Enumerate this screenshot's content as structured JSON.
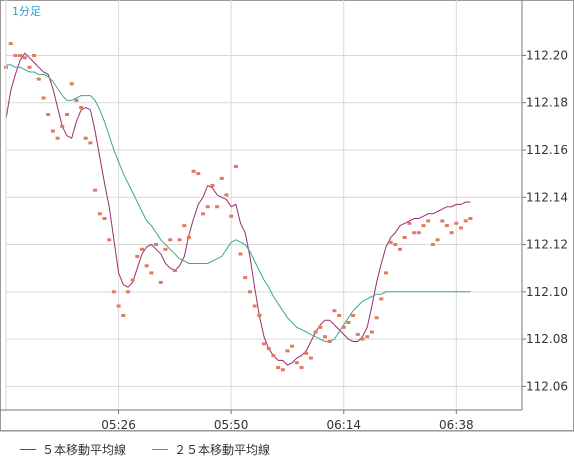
{
  "chart_data": {
    "type": "line",
    "title": "1分足",
    "colors": {
      "dots": "#e07b5f",
      "ma5": "#9b2d6b",
      "ma25": "#3aa890",
      "grid": "#d9d9d9",
      "axis": "#7a7a7a"
    },
    "xlim": [
      0,
      110
    ],
    "ylim": [
      112.05,
      112.215
    ],
    "xticks": [
      {
        "x": 24,
        "label": "05:26"
      },
      {
        "x": 48,
        "label": "05:50"
      },
      {
        "x": 72,
        "label": "06:14"
      },
      {
        "x": 96,
        "label": "06:38"
      }
    ],
    "yticks": [
      {
        "value": 112.06,
        "label": "112.06"
      },
      {
        "value": 112.08,
        "label": "112.08"
      },
      {
        "value": 112.1,
        "label": "112.10"
      },
      {
        "value": 112.12,
        "label": "112.12"
      },
      {
        "value": 112.14,
        "label": "112.14"
      },
      {
        "value": 112.16,
        "label": "112.16"
      },
      {
        "value": 112.18,
        "label": "112.18"
      },
      {
        "value": 112.2,
        "label": "112.20"
      }
    ],
    "series": [
      {
        "name": "５本移動平均線",
        "style": "line",
        "x": [
          0,
          1,
          2,
          3,
          4,
          5,
          6,
          7,
          8,
          9,
          10,
          11,
          12,
          13,
          14,
          15,
          16,
          17,
          18,
          19,
          20,
          21,
          22,
          23,
          24,
          25,
          26,
          27,
          28,
          29,
          30,
          31,
          32,
          33,
          34,
          35,
          36,
          37,
          38,
          39,
          40,
          41,
          42,
          43,
          44,
          45,
          46,
          47,
          48,
          49,
          50,
          51,
          52,
          53,
          54,
          55,
          56,
          57,
          58,
          59,
          60,
          61,
          62,
          63,
          64,
          65,
          66,
          67,
          68,
          69,
          70,
          71,
          72,
          73,
          74,
          75,
          76,
          77,
          78,
          79,
          80,
          81,
          82,
          83,
          84,
          85,
          86,
          87,
          88,
          89,
          90,
          91,
          92,
          93,
          94,
          95,
          96,
          97,
          98,
          99
        ],
        "values": [
          112.173,
          112.185,
          112.192,
          112.198,
          112.201,
          112.199,
          112.197,
          112.195,
          112.193,
          112.192,
          112.186,
          112.178,
          112.17,
          112.166,
          112.165,
          112.172,
          112.177,
          112.178,
          112.177,
          112.168,
          112.157,
          112.146,
          112.136,
          112.122,
          112.108,
          112.103,
          112.102,
          112.104,
          112.11,
          112.116,
          112.119,
          112.12,
          112.118,
          112.116,
          112.112,
          112.11,
          112.109,
          112.111,
          112.115,
          112.124,
          112.131,
          112.137,
          112.14,
          112.145,
          112.144,
          112.141,
          112.14,
          112.139,
          112.136,
          112.137,
          112.129,
          112.125,
          112.115,
          112.102,
          112.09,
          112.081,
          112.076,
          112.073,
          112.071,
          112.071,
          112.069,
          112.07,
          112.072,
          112.073,
          112.075,
          112.079,
          112.083,
          112.086,
          112.088,
          112.088,
          112.086,
          112.084,
          112.082,
          112.08,
          112.079,
          112.079,
          112.081,
          112.085,
          112.094,
          112.104,
          112.112,
          112.119,
          112.123,
          112.125,
          112.128,
          112.129,
          112.13,
          112.131,
          112.131,
          112.132,
          112.133,
          112.133,
          112.134,
          112.135,
          112.136,
          112.136,
          112.137,
          112.137,
          112.138,
          112.138
        ]
      },
      {
        "name": "２５本移動平均線",
        "style": "line",
        "x": [
          0,
          1,
          2,
          3,
          4,
          5,
          6,
          7,
          8,
          9,
          10,
          11,
          12,
          13,
          14,
          15,
          16,
          17,
          18,
          19,
          20,
          21,
          22,
          23,
          24,
          25,
          26,
          27,
          28,
          29,
          30,
          31,
          32,
          33,
          34,
          35,
          36,
          37,
          38,
          39,
          40,
          41,
          42,
          43,
          44,
          45,
          46,
          47,
          48,
          49,
          50,
          51,
          52,
          53,
          54,
          55,
          56,
          57,
          58,
          59,
          60,
          61,
          62,
          63,
          64,
          65,
          66,
          67,
          68,
          69,
          70,
          71,
          72,
          73,
          74,
          75,
          76,
          77,
          78,
          79,
          80,
          81,
          82,
          83,
          84,
          85,
          86,
          87,
          88,
          89,
          90,
          91,
          92,
          93,
          94,
          95,
          96,
          97,
          98,
          99
        ],
        "values": [
          112.196,
          112.196,
          112.195,
          112.195,
          112.194,
          112.193,
          112.193,
          112.192,
          112.192,
          112.191,
          112.189,
          112.186,
          112.183,
          112.181,
          112.181,
          112.182,
          112.183,
          112.183,
          112.183,
          112.181,
          112.177,
          112.172,
          112.166,
          112.16,
          112.155,
          112.15,
          112.146,
          112.142,
          112.138,
          112.134,
          112.13,
          112.128,
          112.125,
          112.122,
          112.12,
          112.118,
          112.116,
          112.114,
          112.113,
          112.112,
          112.112,
          112.112,
          112.112,
          112.112,
          112.113,
          112.114,
          112.115,
          112.118,
          112.121,
          112.122,
          112.121,
          112.12,
          112.117,
          112.113,
          112.109,
          112.105,
          112.102,
          112.098,
          112.095,
          112.092,
          112.089,
          112.087,
          112.085,
          112.084,
          112.083,
          112.082,
          112.081,
          112.08,
          112.079,
          112.079,
          112.08,
          112.083,
          112.086,
          112.089,
          112.092,
          112.094,
          112.096,
          112.097,
          112.098,
          112.099,
          112.099,
          112.1,
          112.1,
          112.1,
          112.1,
          112.1,
          112.1,
          112.1,
          112.1,
          112.1,
          112.1,
          112.1,
          112.1,
          112.1,
          112.1,
          112.1,
          112.1,
          112.1,
          112.1,
          112.1
        ]
      },
      {
        "name": "",
        "style": "dots",
        "x": [
          0,
          1,
          2,
          3,
          4,
          5,
          6,
          7,
          8,
          9,
          10,
          11,
          12,
          13,
          14,
          15,
          16,
          17,
          18,
          19,
          20,
          21,
          22,
          23,
          24,
          25,
          26,
          27,
          28,
          29,
          30,
          31,
          32,
          33,
          34,
          35,
          36,
          37,
          38,
          39,
          40,
          41,
          42,
          43,
          44,
          45,
          46,
          47,
          48,
          49,
          50,
          51,
          52,
          53,
          54,
          55,
          56,
          57,
          58,
          59,
          60,
          61,
          62,
          63,
          64,
          65,
          66,
          67,
          68,
          69,
          70,
          71,
          72,
          73,
          74,
          75,
          76,
          77,
          78,
          79,
          80,
          81,
          82,
          83,
          84,
          85,
          86,
          87,
          88,
          89,
          90,
          91,
          92,
          93,
          94,
          95,
          96,
          97,
          98,
          99
        ],
        "values": [
          112.195,
          112.205,
          112.2,
          112.2,
          112.199,
          112.195,
          112.2,
          112.19,
          112.182,
          112.175,
          112.168,
          112.165,
          112.17,
          112.175,
          112.188,
          112.181,
          112.178,
          112.165,
          112.163,
          112.143,
          112.133,
          112.131,
          112.122,
          112.1,
          112.094,
          112.09,
          112.1,
          112.105,
          112.115,
          112.118,
          112.111,
          112.108,
          112.12,
          112.104,
          112.118,
          112.122,
          112.109,
          112.122,
          112.128,
          112.123,
          112.151,
          112.15,
          112.133,
          112.136,
          112.145,
          112.136,
          112.148,
          112.141,
          112.132,
          112.153,
          112.116,
          112.106,
          112.1,
          112.094,
          112.09,
          112.078,
          112.076,
          112.073,
          112.068,
          112.067,
          112.075,
          112.077,
          112.07,
          112.068,
          112.074,
          112.072,
          112.083,
          112.085,
          112.081,
          112.079,
          112.092,
          112.09,
          112.085,
          112.087,
          112.09,
          112.082,
          112.08,
          112.081,
          112.083,
          112.089,
          112.097,
          112.108,
          112.121,
          112.12,
          112.118,
          112.123,
          112.129,
          112.125,
          112.125,
          112.128,
          112.13,
          112.12,
          112.122,
          112.13,
          112.128,
          112.125,
          112.129,
          112.127,
          112.13,
          112.131
        ]
      }
    ]
  }
}
